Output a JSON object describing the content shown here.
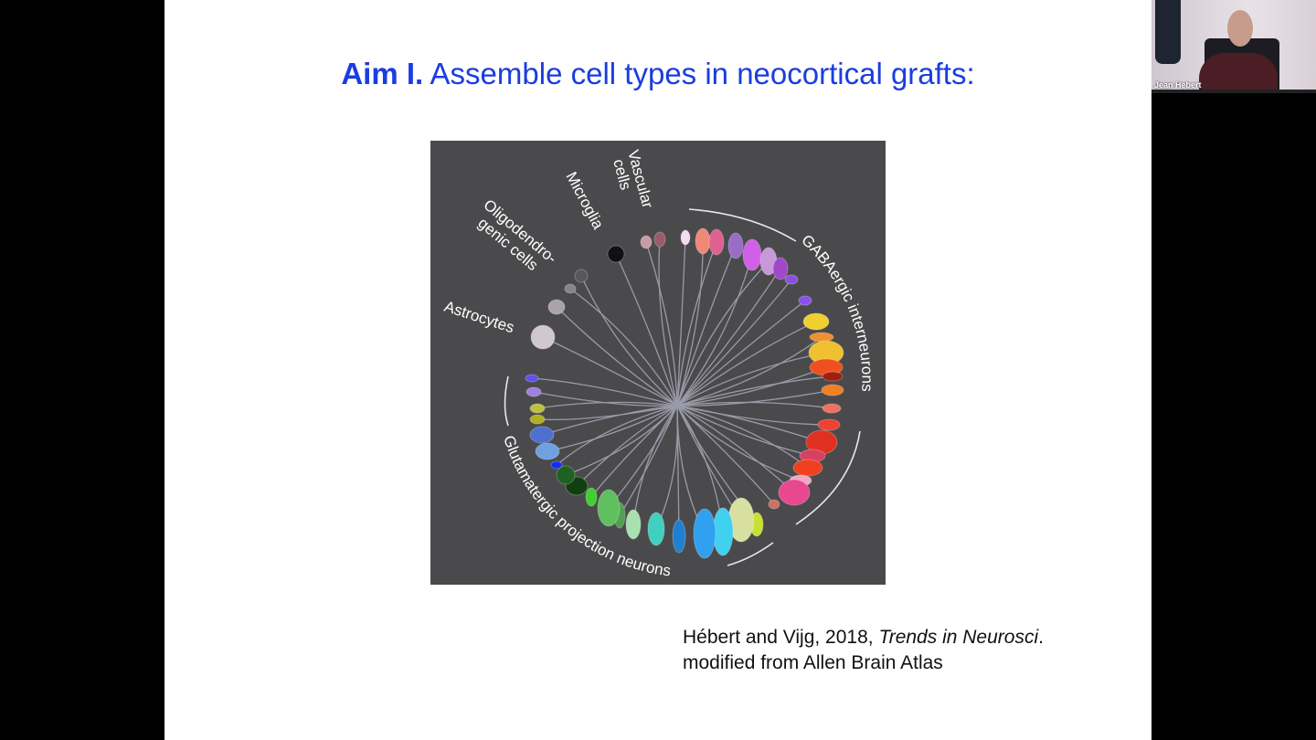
{
  "slide": {
    "title_bold": "Aim I.",
    "title_rest": " Assemble cell types in neocortical grafts:",
    "figure": {
      "labels": {
        "vascular": [
          "Vascular",
          "cells"
        ],
        "microglia": "Microglia",
        "oligo": [
          "Oligodendro-",
          "genic cells"
        ],
        "astrocytes": "Astrocytes",
        "gaba": "GABAergic interneurons",
        "glut": "Glutamatergic projection neurons"
      },
      "background_color": "#4a4a4c"
    },
    "caption": {
      "line1_prefix": "Hébert and Vijg, 2018, ",
      "line1_italic": "Trends in Neurosci",
      "line1_suffix": ".",
      "line2": "modified from Allen Brain Atlas"
    },
    "title_color": "#1a3de0"
  },
  "video": {
    "participant_name": "Jean Hebert"
  }
}
